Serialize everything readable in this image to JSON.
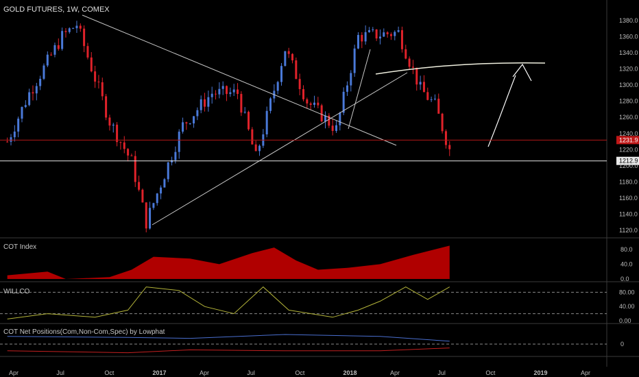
{
  "header": {
    "title": "GOLD FUTURES, 1W, COMEX"
  },
  "panes": {
    "cot_index": {
      "label": "COT Index",
      "ticks": [
        "80.0",
        "40.0",
        "0.0"
      ]
    },
    "willco": {
      "label": "WILLCO",
      "ticks": [
        "80.00",
        "40.00",
        "0.00"
      ]
    },
    "cot_net": {
      "label": "COT Net Positions(Com,Non-Com,Spec) by Lowphat",
      "ticks": [
        "0"
      ]
    }
  },
  "price_axis": {
    "ticks": [
      "1380.0",
      "1360.0",
      "1340.0",
      "1320.0",
      "1300.0",
      "1280.0",
      "1260.0",
      "1240.0",
      "1220.0",
      "1200.0",
      "1180.0",
      "1160.0",
      "1140.0",
      "1120.0"
    ]
  },
  "time_axis": {
    "ticks": [
      "Apr",
      "Jul",
      "Oct",
      "2017",
      "Apr",
      "Jul",
      "Oct",
      "2018",
      "Apr",
      "Jul",
      "Oct",
      "2019",
      "Apr"
    ]
  },
  "price_tags": {
    "upper": "1231.9",
    "lower": "1212.9"
  },
  "colors": {
    "up": "#4a79d8",
    "down": "#e0222a",
    "bg": "#000000",
    "fill": "#b00000",
    "willco": "#b5b53a",
    "net_blue": "#4a6fd0",
    "net_red": "#c42020",
    "trend": "#c8c8c8",
    "hline_red": "#b01818",
    "hline_white": "#e8e8e8"
  },
  "chart_data": [
    {
      "type": "candlestick",
      "title": "GOLD FUTURES, 1W, COMEX",
      "ylim": [
        1110,
        1390
      ],
      "x_range": [
        "2016-03",
        "2019-05"
      ],
      "key_points": [
        {
          "date": "2016-03-21",
          "close": 1230
        },
        {
          "date": "2016-05-02",
          "close": 1290
        },
        {
          "date": "2016-07-04",
          "close": 1360
        },
        {
          "date": "2016-08-01",
          "close": 1375
        },
        {
          "date": "2016-10-03",
          "close": 1255
        },
        {
          "date": "2016-11-14",
          "close": 1205
        },
        {
          "date": "2016-12-12",
          "close": 1130
        },
        {
          "date": "2017-02-20",
          "close": 1250
        },
        {
          "date": "2017-04-17",
          "close": 1290
        },
        {
          "date": "2017-06-05",
          "close": 1290
        },
        {
          "date": "2017-07-10",
          "close": 1210
        },
        {
          "date": "2017-09-04",
          "close": 1345
        },
        {
          "date": "2017-10-16",
          "close": 1280
        },
        {
          "date": "2017-12-11",
          "close": 1245
        },
        {
          "date": "2018-01-22",
          "close": 1360
        },
        {
          "date": "2018-04-09",
          "close": 1365
        },
        {
          "date": "2018-05-21",
          "close": 1295
        },
        {
          "date": "2018-06-18",
          "close": 1275
        },
        {
          "date": "2018-07-16",
          "close": 1220
        }
      ],
      "levels": [
        1231.9,
        1212.9
      ]
    },
    {
      "type": "area",
      "title": "COT Index",
      "ylim": [
        0,
        100
      ],
      "points": [
        {
          "date": "2016-03-21",
          "value": 10
        },
        {
          "date": "2016-06-06",
          "value": 20
        },
        {
          "date": "2016-07-11",
          "value": 0
        },
        {
          "date": "2016-10-03",
          "value": 5
        },
        {
          "date": "2016-11-14",
          "value": 25
        },
        {
          "date": "2016-12-26",
          "value": 60
        },
        {
          "date": "2017-03-06",
          "value": 55
        },
        {
          "date": "2017-05-01",
          "value": 40
        },
        {
          "date": "2017-07-03",
          "value": 70
        },
        {
          "date": "2017-08-14",
          "value": 85
        },
        {
          "date": "2017-09-25",
          "value": 50
        },
        {
          "date": "2017-11-06",
          "value": 25
        },
        {
          "date": "2018-01-01",
          "value": 30
        },
        {
          "date": "2018-03-05",
          "value": 40
        },
        {
          "date": "2018-05-07",
          "value": 65
        },
        {
          "date": "2018-07-16",
          "value": 90
        }
      ]
    },
    {
      "type": "line",
      "title": "WILLCO",
      "ylim": [
        0,
        100
      ],
      "points": [
        {
          "date": "2016-03-21",
          "value": 5
        },
        {
          "date": "2016-06-06",
          "value": 20
        },
        {
          "date": "2016-09-05",
          "value": 10
        },
        {
          "date": "2016-11-07",
          "value": 30
        },
        {
          "date": "2016-12-12",
          "value": 95
        },
        {
          "date": "2017-02-13",
          "value": 85
        },
        {
          "date": "2017-04-03",
          "value": 40
        },
        {
          "date": "2017-05-29",
          "value": 20
        },
        {
          "date": "2017-07-24",
          "value": 95
        },
        {
          "date": "2017-09-11",
          "value": 30
        },
        {
          "date": "2017-12-04",
          "value": 10
        },
        {
          "date": "2018-01-22",
          "value": 30
        },
        {
          "date": "2018-03-05",
          "value": 55
        },
        {
          "date": "2018-04-23",
          "value": 95
        },
        {
          "date": "2018-06-04",
          "value": 60
        },
        {
          "date": "2018-07-16",
          "value": 95
        }
      ]
    },
    {
      "type": "line",
      "title": "COT Net Positions(Com,Non-Com,Spec) by Lowphat",
      "series": [
        {
          "color": "#4a6fd0",
          "points": [
            {
              "date": "2016-03-21",
              "value": 0.8
            },
            {
              "date": "2016-11-07",
              "value": 0.7
            },
            {
              "date": "2017-03-06",
              "value": 0.6
            },
            {
              "date": "2017-09-04",
              "value": 1.0
            },
            {
              "date": "2018-03-05",
              "value": 0.8
            },
            {
              "date": "2018-07-16",
              "value": 0.3
            }
          ]
        },
        {
          "color": "#c42020",
          "points": [
            {
              "date": "2016-03-21",
              "value": -0.7
            },
            {
              "date": "2016-11-07",
              "value": -0.9
            },
            {
              "date": "2017-03-06",
              "value": -0.6
            },
            {
              "date": "2017-09-04",
              "value": -0.7
            },
            {
              "date": "2018-03-05",
              "value": -0.7
            },
            {
              "date": "2018-07-16",
              "value": -0.4
            }
          ]
        }
      ]
    }
  ]
}
